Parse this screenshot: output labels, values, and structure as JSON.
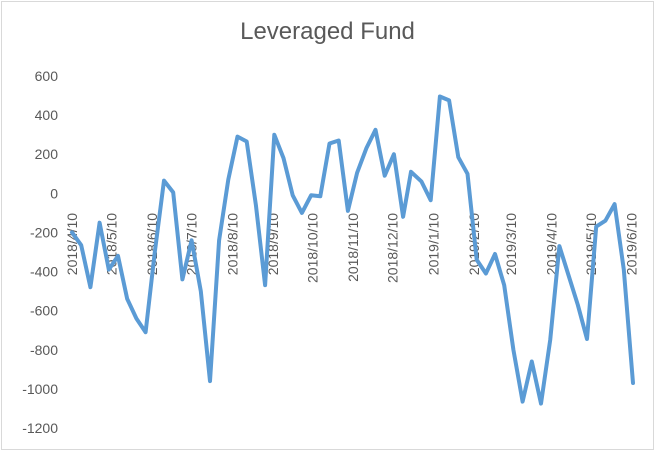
{
  "chart_data": {
    "type": "line",
    "title": "Leveraged Fund",
    "xlabel": "",
    "ylabel": "",
    "ylim": [
      -1200,
      600
    ],
    "yticks": [
      600,
      400,
      200,
      0,
      -200,
      -400,
      -600,
      -800,
      -1000,
      -1200
    ],
    "xtick_labels": [
      "2018/4/10",
      "2018/5/10",
      "2018/6/10",
      "2018/7/10",
      "2018/8/10",
      "2018/9/10",
      "2018/10/10",
      "2018/11/10",
      "2018/12/10",
      "2019/1/10",
      "2019/2/10",
      "2019/3/10",
      "2019/4/10",
      "2019/5/10",
      "2019/6/10"
    ],
    "grid": false,
    "legend": "none",
    "series_color": "#5b9bd5",
    "x": [
      "2018/4/10",
      "2018/4/17",
      "2018/4/24",
      "2018/5/1",
      "2018/5/8",
      "2018/5/15",
      "2018/5/22",
      "2018/5/29",
      "2018/6/5",
      "2018/6/12",
      "2018/6/19",
      "2018/6/26",
      "2018/7/3",
      "2018/7/10",
      "2018/7/17",
      "2018/7/24",
      "2018/7/31",
      "2018/8/7",
      "2018/8/14",
      "2018/8/21",
      "2018/8/28",
      "2018/9/4",
      "2018/9/11",
      "2018/9/18",
      "2018/9/25",
      "2018/10/2",
      "2018/10/9",
      "2018/10/16",
      "2018/10/23",
      "2018/10/30",
      "2018/11/6",
      "2018/11/13",
      "2018/11/20",
      "2018/11/27",
      "2018/12/4",
      "2018/12/11",
      "2018/12/18",
      "2018/12/24",
      "2019/1/1",
      "2019/1/8",
      "2019/1/15",
      "2019/1/22",
      "2019/1/29",
      "2019/2/5",
      "2019/2/12",
      "2019/2/19",
      "2019/2/26",
      "2019/3/5",
      "2019/3/12",
      "2019/3/19",
      "2019/3/26",
      "2019/4/2",
      "2019/4/9",
      "2019/4/16",
      "2019/4/23",
      "2019/4/30",
      "2019/5/7",
      "2019/5/14",
      "2019/5/21",
      "2019/5/28",
      "2019/6/4",
      "2019/6/11"
    ],
    "y": [
      -200,
      -265,
      -480,
      -150,
      -390,
      -320,
      -540,
      -640,
      -710,
      -300,
      65,
      5,
      -440,
      -240,
      -500,
      -960,
      -240,
      70,
      290,
      265,
      -60,
      -470,
      300,
      180,
      -10,
      -100,
      -10,
      -15,
      255,
      270,
      -90,
      105,
      230,
      325,
      90,
      200,
      -120,
      110,
      60,
      -35,
      495,
      475,
      185,
      100,
      -340,
      -410,
      -310,
      -470,
      -800,
      -1065,
      -860,
      -1075,
      -750,
      -270,
      -420,
      -570,
      -745,
      -170,
      -140,
      -55,
      -390,
      -970
    ]
  }
}
